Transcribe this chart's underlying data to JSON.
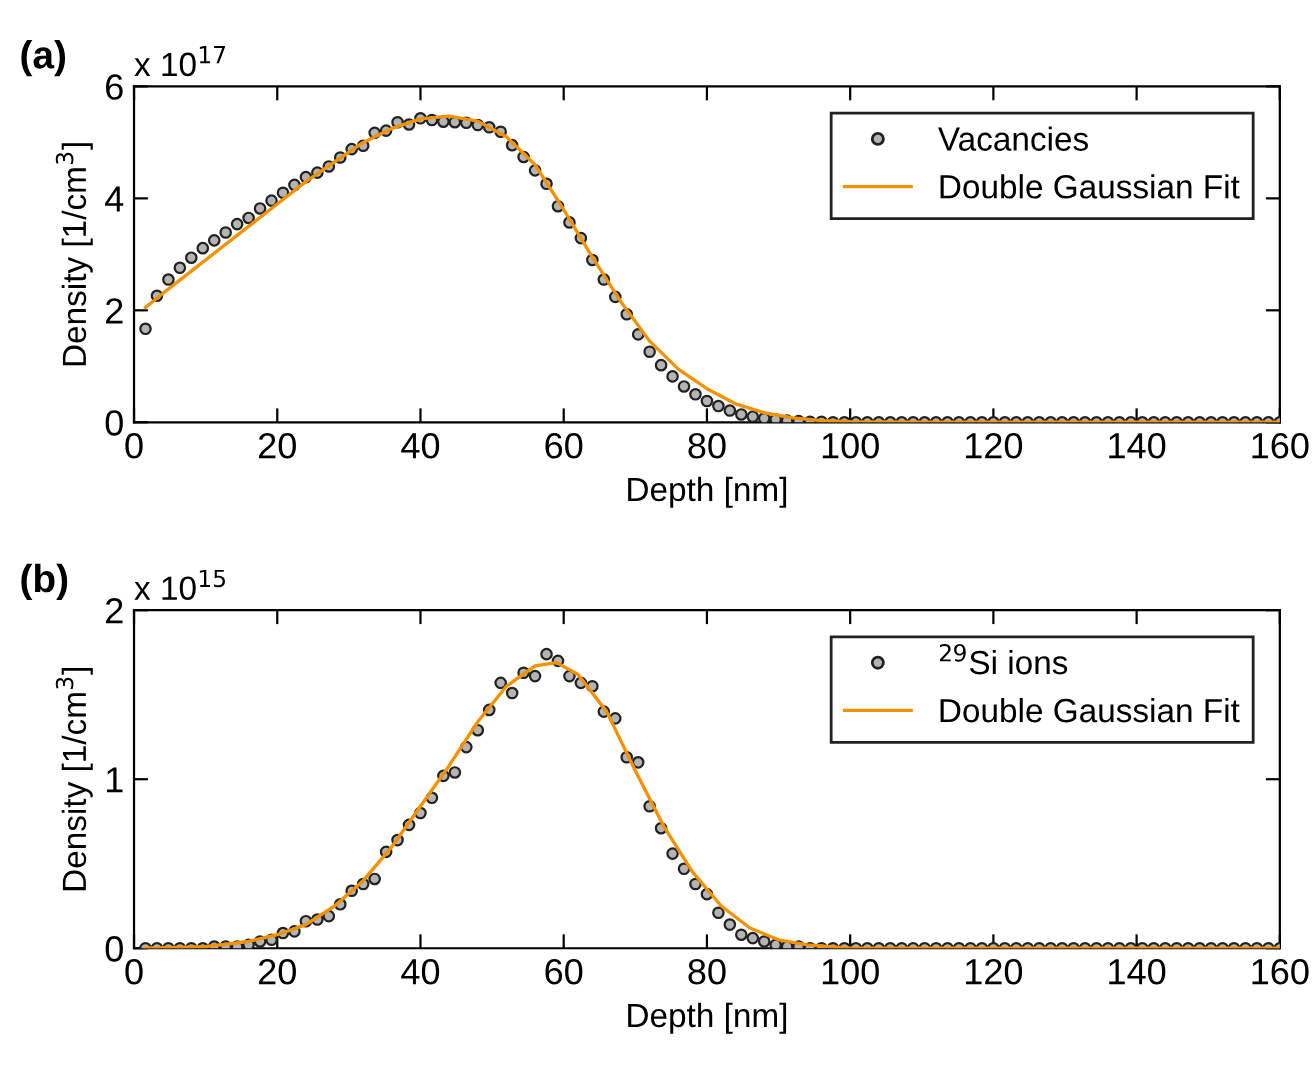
{
  "chart_data": [
    {
      "type": "scatter",
      "title": "(a)",
      "xlabel": "Depth [nm]",
      "ylabel": "Density [1/cm$^{3}$]",
      "annotations": [
        "x 10$^{17}$"
      ],
      "xlim": [
        0,
        160
      ],
      "ylim": [
        0,
        6
      ],
      "xticks": [
        0,
        20,
        40,
        60,
        80,
        100,
        120,
        140,
        160
      ],
      "yticks": [
        0,
        2,
        4,
        6
      ],
      "grid": false,
      "legend": "top right",
      "series": [
        {
          "name": "Vacancies",
          "marker": "circle",
          "color": "#b4b4b4",
          "x": [
            1.6,
            3.2,
            4.8,
            6.4,
            8,
            9.6,
            11.2,
            12.8,
            14.4,
            16,
            17.6,
            19.2,
            20.8,
            22.4,
            24,
            25.6,
            27.2,
            28.8,
            30.4,
            32,
            33.6,
            35.2,
            36.8,
            38.4,
            40,
            41.6,
            43.2,
            44.8,
            46.4,
            48,
            49.6,
            51.2,
            52.8,
            54.4,
            56,
            57.6,
            59.2,
            60.8,
            62.4,
            64,
            65.6,
            67.2,
            68.8,
            70.4,
            72,
            73.6,
            75.2,
            76.8,
            78.4,
            80,
            81.6,
            83.2,
            84.8,
            86.4,
            88,
            89.6,
            91.2,
            92.8,
            94.4,
            96,
            97.6,
            99.2,
            100.8,
            102.4,
            104,
            105.6,
            107.2,
            108.8,
            110.4,
            112,
            113.6,
            115.2,
            116.8,
            118.4,
            120,
            121.6,
            123.2,
            124.8,
            126.4,
            128,
            129.6,
            131.2,
            132.8,
            134.4,
            136,
            137.6,
            139.2,
            140.8,
            142.4,
            144,
            145.6,
            147.2,
            148.8,
            150.4,
            152,
            153.6,
            155.2,
            156.8,
            158.4,
            160
          ],
          "values": [
            1.67,
            2.26,
            2.55,
            2.76,
            2.94,
            3.11,
            3.25,
            3.39,
            3.54,
            3.65,
            3.82,
            3.96,
            4.1,
            4.24,
            4.38,
            4.46,
            4.57,
            4.73,
            4.88,
            4.94,
            5.17,
            5.21,
            5.36,
            5.32,
            5.43,
            5.4,
            5.37,
            5.36,
            5.35,
            5.31,
            5.27,
            5.19,
            4.95,
            4.74,
            4.5,
            4.26,
            3.86,
            3.57,
            3.29,
            2.9,
            2.55,
            2.24,
            1.93,
            1.57,
            1.26,
            1.02,
            0.82,
            0.64,
            0.5,
            0.38,
            0.29,
            0.21,
            0.14,
            0.1,
            0.07,
            0.05,
            0.03,
            0.02,
            0.01,
            0.01,
            0,
            0,
            0,
            0,
            0,
            0,
            0,
            0,
            0,
            0,
            0,
            0,
            0,
            0,
            0,
            0,
            0,
            0,
            0,
            0,
            0,
            0,
            0,
            0,
            0,
            0,
            0,
            0,
            0,
            0,
            0,
            0,
            0,
            0,
            0,
            0,
            0,
            0,
            0,
            0
          ]
        },
        {
          "name": "Double Gaussian Fit",
          "type": "line",
          "marker": "none",
          "line_style": "solid",
          "color": "#f39200",
          "x": [
            1.6,
            4,
            8,
            12,
            16,
            20,
            24,
            28,
            32,
            36,
            40,
            44,
            48,
            52,
            56,
            60,
            64,
            68,
            72,
            76,
            80,
            84,
            88,
            92,
            96,
            100,
            110,
            160
          ],
          "values": [
            2.05,
            2.3,
            2.7,
            3.1,
            3.5,
            3.9,
            4.3,
            4.65,
            5.0,
            5.25,
            5.42,
            5.47,
            5.38,
            5.1,
            4.6,
            3.8,
            2.95,
            2.15,
            1.45,
            0.95,
            0.6,
            0.33,
            0.17,
            0.08,
            0.03,
            0.01,
            0,
            0
          ]
        }
      ]
    },
    {
      "type": "scatter",
      "title": "(b)",
      "xlabel": "Depth [nm]",
      "ylabel": "Density [1/cm$^{3}$]",
      "annotations": [
        "x 10$^{15}$"
      ],
      "xlim": [
        0,
        160
      ],
      "ylim": [
        0,
        2
      ],
      "xticks": [
        0,
        20,
        40,
        60,
        80,
        100,
        120,
        140,
        160
      ],
      "yticks": [
        0,
        1,
        2
      ],
      "grid": false,
      "legend": "top right",
      "series": [
        {
          "name": "$^{29}$Si ions",
          "marker": "circle",
          "color": "#b4b4b4",
          "x": [
            1.6,
            3.2,
            4.8,
            6.4,
            8,
            9.6,
            11.2,
            12.8,
            14.4,
            16,
            17.6,
            19.2,
            20.8,
            22.4,
            24,
            25.6,
            27.2,
            28.8,
            30.4,
            32,
            33.6,
            35.2,
            36.8,
            38.4,
            40,
            41.6,
            43.2,
            44.8,
            46.4,
            48,
            49.6,
            51.2,
            52.8,
            54.4,
            56,
            57.6,
            59.2,
            60.8,
            62.4,
            64,
            65.6,
            67.2,
            68.8,
            70.4,
            72,
            73.6,
            75.2,
            76.8,
            78.4,
            80,
            81.6,
            83.2,
            84.8,
            86.4,
            88,
            89.6,
            91.2,
            92.8,
            94.4,
            96,
            97.6,
            99.2,
            100.8,
            102.4,
            104,
            105.6,
            107.2,
            108.8,
            110.4,
            112,
            113.6,
            115.2,
            116.8,
            118.4,
            120,
            121.6,
            123.2,
            124.8,
            126.4,
            128,
            129.6,
            131.2,
            132.8,
            134.4,
            136,
            137.6,
            139.2,
            140.8,
            142.4,
            144,
            145.6,
            147.2,
            148.8,
            150.4,
            152,
            153.6,
            155.2,
            156.8,
            158.4,
            160
          ],
          "values": [
            0,
            0,
            0,
            0,
            0,
            0,
            0.01,
            0.01,
            0.01,
            0.02,
            0.04,
            0.05,
            0.09,
            0.1,
            0.16,
            0.17,
            0.19,
            0.26,
            0.34,
            0.38,
            0.41,
            0.57,
            0.64,
            0.73,
            0.8,
            0.89,
            1.02,
            1.04,
            1.19,
            1.29,
            1.41,
            1.57,
            1.51,
            1.63,
            1.61,
            1.74,
            1.7,
            1.61,
            1.57,
            1.55,
            1.4,
            1.36,
            1.13,
            1.1,
            0.84,
            0.71,
            0.56,
            0.47,
            0.38,
            0.32,
            0.21,
            0.14,
            0.08,
            0.06,
            0.04,
            0.02,
            0.01,
            0.01,
            0,
            0,
            0,
            0,
            0,
            0,
            0,
            0,
            0,
            0,
            0,
            0,
            0,
            0,
            0,
            0,
            0,
            0,
            0,
            0,
            0,
            0,
            0,
            0,
            0,
            0,
            0,
            0,
            0,
            0,
            0,
            0,
            0,
            0,
            0,
            0,
            0,
            0,
            0,
            0,
            0,
            0
          ]
        },
        {
          "name": "Double Gaussian Fit",
          "type": "line",
          "marker": "none",
          "line_style": "solid",
          "color": "#f39200",
          "x": [
            1.6,
            10,
            16,
            20,
            24,
            28,
            32,
            36,
            40,
            44,
            48,
            52,
            56,
            59,
            62,
            66,
            70,
            74,
            78,
            82,
            86,
            90,
            94,
            100,
            160
          ],
          "values": [
            0,
            0.01,
            0.04,
            0.08,
            0.14,
            0.25,
            0.4,
            0.6,
            0.84,
            1.08,
            1.34,
            1.55,
            1.67,
            1.69,
            1.62,
            1.4,
            1.05,
            0.72,
            0.45,
            0.25,
            0.12,
            0.05,
            0.02,
            0,
            0
          ]
        }
      ]
    }
  ]
}
